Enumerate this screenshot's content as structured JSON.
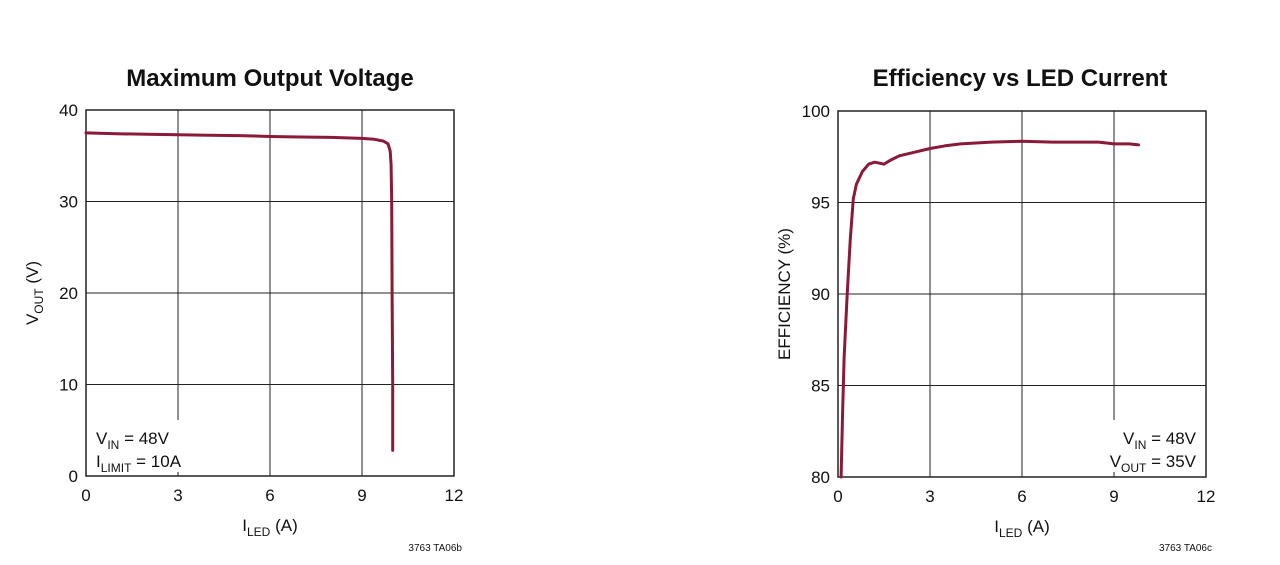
{
  "chart_data": [
    {
      "type": "line",
      "title": "Maximum Output Voltage",
      "xlabel": {
        "main": "I",
        "sub": "LED",
        "rest": " (A)"
      },
      "ylabel": {
        "main": "V",
        "sub": "OUT",
        "rest": " (V)"
      },
      "xlim": [
        0,
        12
      ],
      "ylim": [
        0,
        40
      ],
      "xticks": [
        0,
        3,
        6,
        9,
        12
      ],
      "yticks": [
        0,
        10,
        20,
        30,
        40
      ],
      "grid": true,
      "annotations": [
        {
          "main": "V",
          "sub": "IN",
          "rest": " = 48V"
        },
        {
          "main": "I",
          "sub": "LIMIT",
          "rest": " = 10A"
        }
      ],
      "figure_code": "3763 TA06b",
      "series": [
        {
          "color": "#8b1a38",
          "x": [
            0,
            1,
            2,
            3,
            4,
            5,
            6,
            7,
            8,
            9,
            9.4,
            9.7,
            9.85,
            9.92,
            9.95,
            9.97,
            9.98,
            10.0,
            10.0
          ],
          "y": [
            37.5,
            37.4,
            37.35,
            37.3,
            37.25,
            37.2,
            37.1,
            37.05,
            37.0,
            36.9,
            36.8,
            36.6,
            36.3,
            35.5,
            34.0,
            30.0,
            20.0,
            10.0,
            2.8
          ]
        }
      ]
    },
    {
      "type": "line",
      "title": "Efficiency vs LED Current",
      "xlabel": {
        "main": "I",
        "sub": "LED",
        "rest": " (A)"
      },
      "ylabel": {
        "main": "EFFICIENCY (%)",
        "sub": "",
        "rest": ""
      },
      "xlim": [
        0,
        12
      ],
      "ylim": [
        80,
        100
      ],
      "xticks": [
        0,
        3,
        6,
        9,
        12
      ],
      "yticks": [
        80,
        85,
        90,
        95,
        100
      ],
      "grid": true,
      "annotations": [
        {
          "main": "V",
          "sub": "IN",
          "rest": " = 48V"
        },
        {
          "main": "V",
          "sub": "OUT",
          "rest": " = 35V"
        }
      ],
      "figure_code": "3763 TA06c",
      "series": [
        {
          "color": "#8b1a38",
          "x": [
            0.1,
            0.15,
            0.2,
            0.3,
            0.4,
            0.5,
            0.6,
            0.8,
            1.0,
            1.2,
            1.5,
            1.7,
            2.0,
            2.5,
            3.0,
            3.5,
            4.0,
            5.0,
            6.0,
            7.0,
            8.0,
            8.5,
            9.0,
            9.5,
            9.8
          ],
          "y": [
            80.0,
            83.5,
            86.5,
            90.0,
            93.0,
            95.2,
            96.0,
            96.7,
            97.1,
            97.2,
            97.1,
            97.3,
            97.55,
            97.75,
            97.95,
            98.1,
            98.2,
            98.3,
            98.35,
            98.3,
            98.3,
            98.3,
            98.2,
            98.2,
            98.15
          ]
        }
      ]
    }
  ]
}
